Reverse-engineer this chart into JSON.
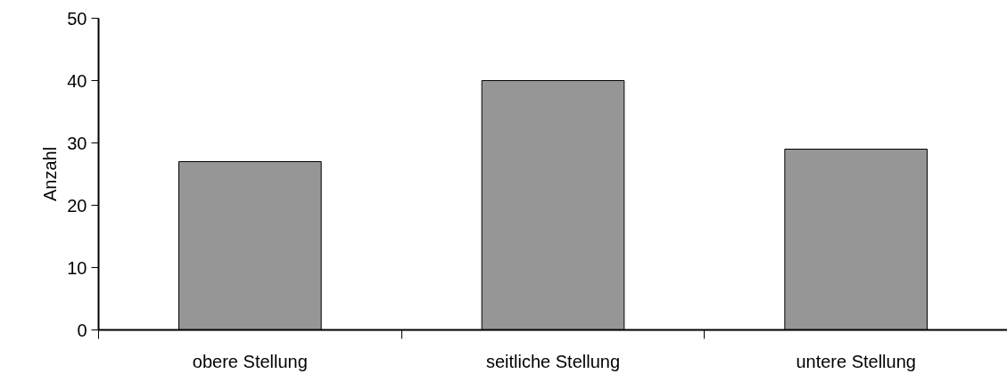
{
  "chart_data": {
    "type": "bar",
    "ylabel": "Anzahl",
    "categories": [
      "obere Stellung",
      "seitliche Stellung",
      "untere Stellung"
    ],
    "values": [
      27,
      40,
      29
    ],
    "color": "#969696",
    "ylim": [
      0,
      50
    ],
    "yticks": [
      0,
      10,
      20,
      30,
      40,
      50
    ]
  }
}
